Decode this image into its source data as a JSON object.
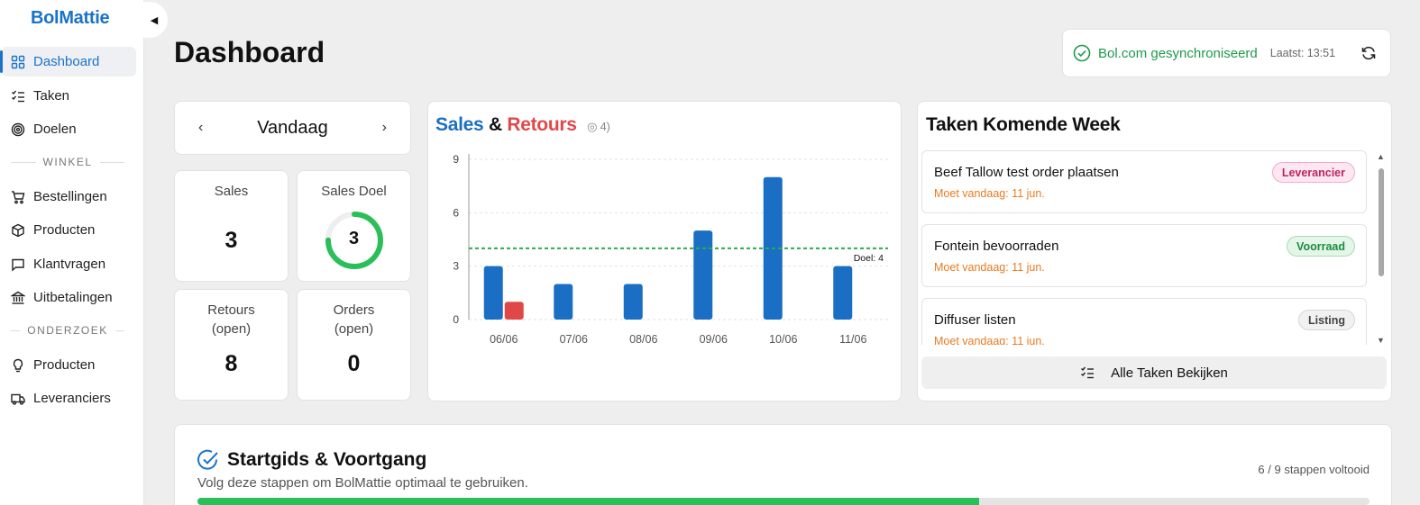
{
  "app": {
    "brand": "BolMattie"
  },
  "sidebar": {
    "items": [
      {
        "label": "Dashboard",
        "icon": "grid-icon",
        "active": true
      },
      {
        "label": "Taken",
        "icon": "checklist-icon"
      },
      {
        "label": "Doelen",
        "icon": "target-icon"
      }
    ],
    "section_winkel": "WINKEL",
    "winkel_items": [
      {
        "label": "Bestellingen",
        "icon": "cart-icon"
      },
      {
        "label": "Producten",
        "icon": "box-icon"
      },
      {
        "label": "Klantvragen",
        "icon": "message-icon"
      },
      {
        "label": "Uitbetalingen",
        "icon": "bank-icon"
      }
    ],
    "section_onderzoek": "ONDERZOEK",
    "onderzoek_items": [
      {
        "label": "Producten",
        "icon": "lightbulb-icon"
      },
      {
        "label": "Leveranciers",
        "icon": "truck-icon"
      }
    ]
  },
  "header": {
    "title": "Dashboard",
    "sync_label": "Bol.com gesynchroniseerd",
    "sync_time": "Laatst: 13:51"
  },
  "day_nav": {
    "label": "Vandaag",
    "prev": "‹",
    "next": "›"
  },
  "stats": {
    "sales": {
      "label": "Sales",
      "value": "3"
    },
    "sales_goal": {
      "label": "Sales Doel",
      "value": "3",
      "progress": 0.75
    },
    "returns": {
      "label": "Retours\n(open)",
      "value": "8"
    },
    "orders": {
      "label": "Orders\n(open)",
      "value": "0"
    }
  },
  "chart": {
    "title_sales": "Sales",
    "title_amp": "&",
    "title_returns": "Retours",
    "subtitle": "4)",
    "goal_label": "Doel: 4"
  },
  "chart_data": {
    "type": "bar",
    "categories": [
      "06/06",
      "07/06",
      "08/06",
      "09/06",
      "10/06",
      "11/06"
    ],
    "series": [
      {
        "name": "Sales",
        "values": [
          3,
          2,
          2,
          5,
          8,
          3
        ],
        "color": "#1a6fc4"
      },
      {
        "name": "Retours",
        "values": [
          1,
          0,
          0,
          0,
          0,
          0
        ],
        "color": "#e04848"
      }
    ],
    "ylim": [
      0,
      9
    ],
    "yticks": [
      0,
      3,
      6,
      9
    ],
    "goal": 4,
    "goal_color": "#2bab52"
  },
  "tasks": {
    "title": "Taken Komende Week",
    "items": [
      {
        "name": "Beef Tallow test order plaatsen",
        "due": "Moet vandaag: 11 jun.",
        "tag": "Leverancier",
        "tag_class": "leverancier"
      },
      {
        "name": "Fontein bevoorraden",
        "due": "Moet vandaag: 11 jun.",
        "tag": "Voorraad",
        "tag_class": "voorraad"
      },
      {
        "name": "Diffuser listen",
        "due": "Moet vandaag: 11 jun.",
        "tag": "Listing",
        "tag_class": "listing"
      }
    ],
    "all_button": "Alle Taken Bekijken"
  },
  "guide": {
    "title": "Startgids & Voortgang",
    "subtitle": "Volg deze stappen om BolMattie optimaal te gebruiken.",
    "progress_text": "6 / 9 stappen voltooid",
    "progress": 0.667
  },
  "colors": {
    "accent": "#1a73c8",
    "success": "#1e9a4b",
    "returns": "#e04848",
    "warning": "#ea7a1e"
  }
}
